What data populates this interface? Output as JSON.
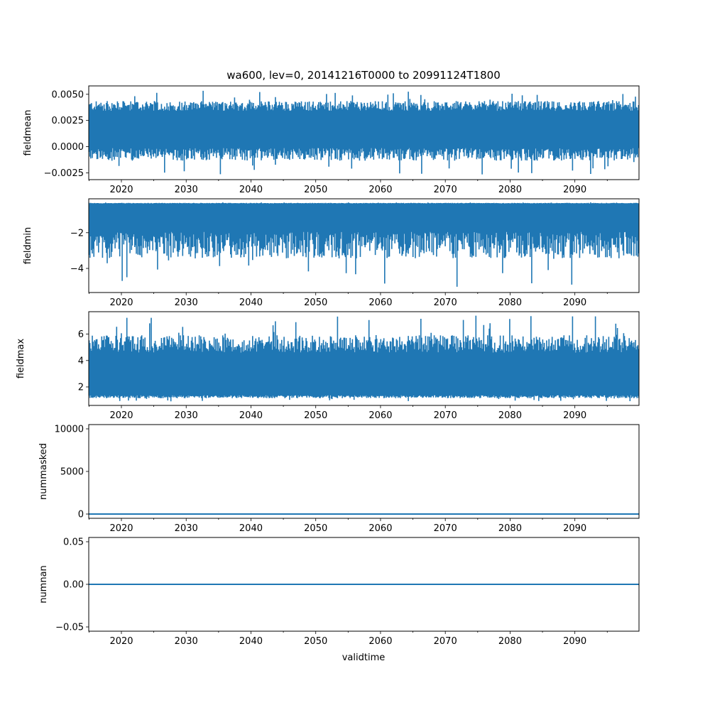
{
  "figure": {
    "title": "wa600, lev=0, 20141216T0000 to 20991124T1800",
    "xlabel": "validtime"
  },
  "chart_data": [
    {
      "type": "line",
      "name": "fieldmean",
      "ylabel": "fieldmean",
      "x_range": [
        2014.96,
        2099.9
      ],
      "x_ticks": [
        2020,
        2030,
        2040,
        2050,
        2060,
        2070,
        2080,
        2090
      ],
      "x_tick_labels": [
        "2020",
        "2030",
        "2040",
        "2050",
        "2060",
        "2070",
        "2080",
        "2090"
      ],
      "ylim": [
        -0.00315,
        0.0058
      ],
      "y_ticks": [
        -0.0025,
        0.0,
        0.0025,
        0.005
      ],
      "y_tick_labels": [
        "−0.0025",
        "0.0000",
        "0.0025",
        "0.0050"
      ],
      "series": [
        {
          "name": "fieldmean",
          "color": "#1f77b4",
          "envelope": {
            "center": 0.0015,
            "band_low": -0.0005,
            "band_high": 0.0037,
            "min": -0.0027,
            "max": 0.0054
          }
        }
      ]
    },
    {
      "type": "line",
      "name": "fieldmin",
      "ylabel": "fieldmin",
      "x_range": [
        2014.96,
        2099.9
      ],
      "x_ticks": [
        2020,
        2030,
        2040,
        2050,
        2060,
        2070,
        2080,
        2090
      ],
      "x_tick_labels": [
        "2020",
        "2030",
        "2040",
        "2050",
        "2060",
        "2070",
        "2080",
        "2090"
      ],
      "ylim": [
        -5.35,
        -0.1
      ],
      "y_ticks": [
        -4,
        -2
      ],
      "y_tick_labels": [
        "−4",
        "−2"
      ],
      "series": [
        {
          "name": "fieldmin",
          "color": "#1f77b4",
          "envelope": {
            "center": -1.3,
            "band_low": -2.4,
            "band_high": -0.35,
            "min": -5.1,
            "max": -0.3
          }
        }
      ]
    },
    {
      "type": "line",
      "name": "fieldmax",
      "ylabel": "fieldmax",
      "x_range": [
        2014.96,
        2099.9
      ],
      "x_ticks": [
        2020,
        2030,
        2040,
        2050,
        2060,
        2070,
        2080,
        2090
      ],
      "x_tick_labels": [
        "2020",
        "2030",
        "2040",
        "2050",
        "2060",
        "2070",
        "2080",
        "2090"
      ],
      "ylim": [
        0.6,
        7.7
      ],
      "y_ticks": [
        2,
        4,
        6
      ],
      "y_tick_labels": [
        "2",
        "4",
        "6"
      ],
      "series": [
        {
          "name": "fieldmax",
          "color": "#1f77b4",
          "envelope": {
            "center": 2.8,
            "band_low": 1.3,
            "band_high": 5.0,
            "min": 0.9,
            "max": 7.4
          }
        }
      ]
    },
    {
      "type": "line",
      "name": "nummasked",
      "ylabel": "nummasked",
      "x_range": [
        2014.96,
        2099.9
      ],
      "x_ticks": [
        2020,
        2030,
        2040,
        2050,
        2060,
        2070,
        2080,
        2090
      ],
      "x_tick_labels": [
        "2020",
        "2030",
        "2040",
        "2050",
        "2060",
        "2070",
        "2080",
        "2090"
      ],
      "ylim": [
        -500,
        10500
      ],
      "y_ticks": [
        0,
        5000,
        10000
      ],
      "y_tick_labels": [
        "0",
        "5000",
        "10000"
      ],
      "series": [
        {
          "name": "nummasked",
          "color": "#1f77b4",
          "constant": 0
        }
      ]
    },
    {
      "type": "line",
      "name": "numnan",
      "ylabel": "numnan",
      "x_range": [
        2014.96,
        2099.9
      ],
      "x_ticks": [
        2020,
        2030,
        2040,
        2050,
        2060,
        2070,
        2080,
        2090
      ],
      "x_tick_labels": [
        "2020",
        "2030",
        "2040",
        "2050",
        "2060",
        "2070",
        "2080",
        "2090"
      ],
      "ylim": [
        -0.055,
        0.055
      ],
      "y_ticks": [
        -0.05,
        0.0,
        0.05
      ],
      "y_tick_labels": [
        "−0.05",
        "0.00",
        "0.05"
      ],
      "series": [
        {
          "name": "numnan",
          "color": "#1f77b4",
          "constant": 0
        }
      ]
    }
  ]
}
